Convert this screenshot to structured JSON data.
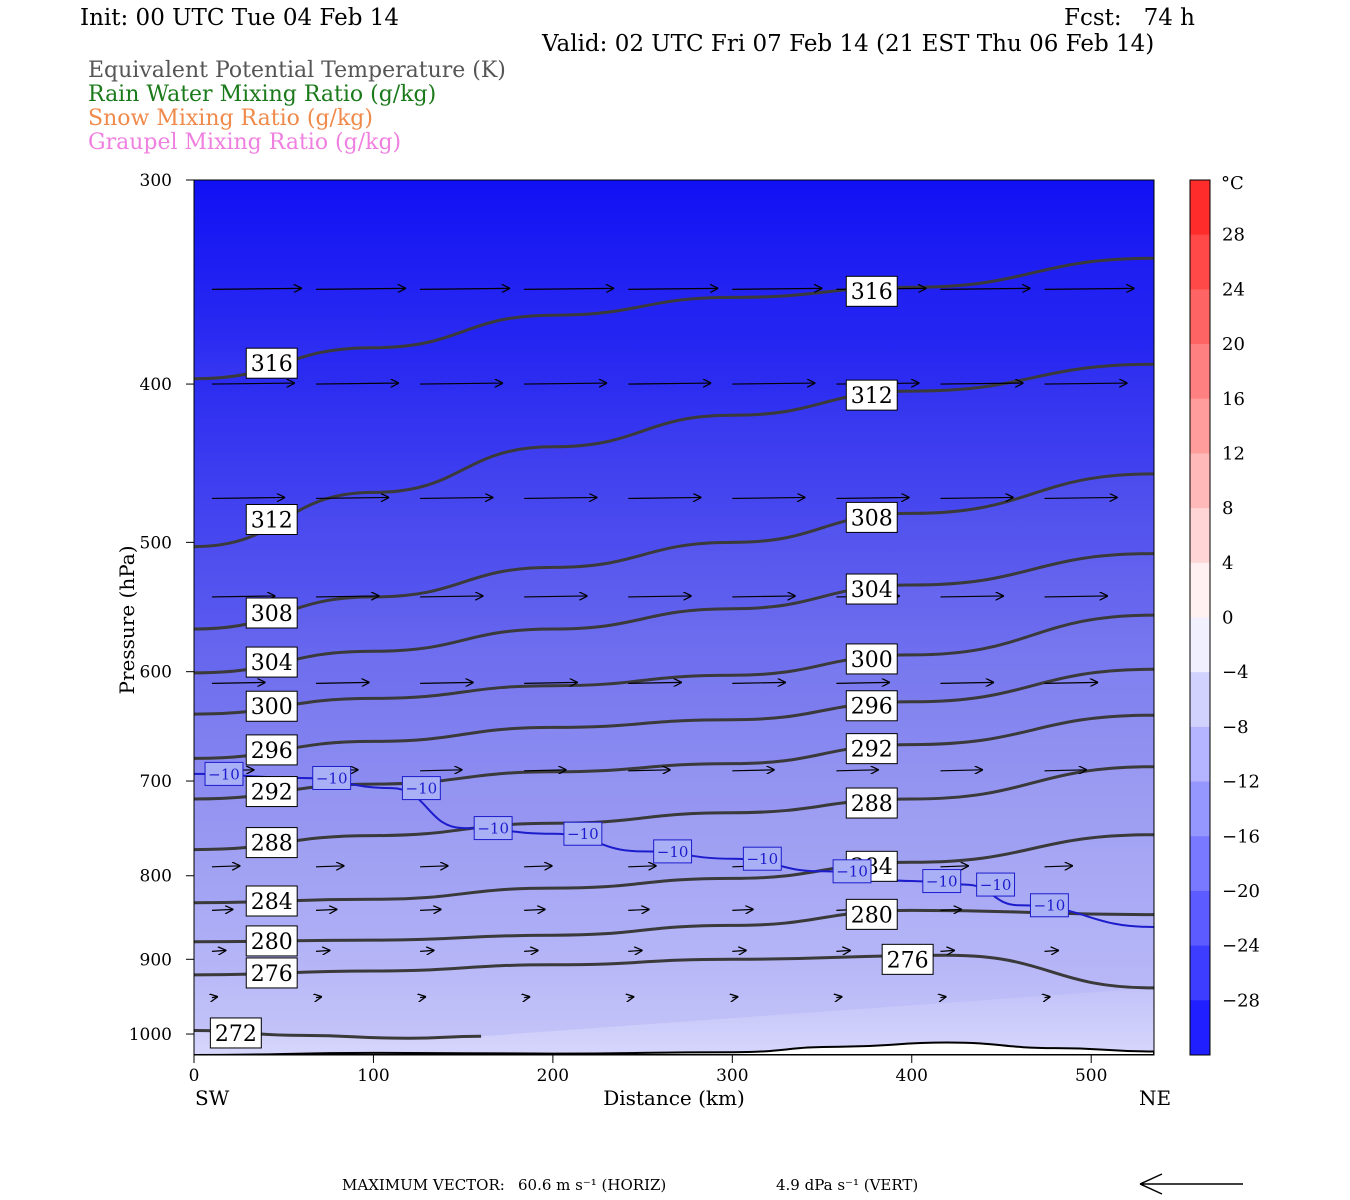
{
  "header": {
    "init": "Init: 00 UTC Tue 04 Feb 14",
    "fcst": "Fcst:   74 h",
    "valid": "Valid: 02 UTC Fri 07 Feb 14 (21 EST Thu 06 Feb 14)"
  },
  "legend": [
    {
      "label": "Equivalent Potential Temperature (K)",
      "color": "#555555"
    },
    {
      "label": "Rain Water Mixing Ratio (g/kg)",
      "color": "#1a7a1a"
    },
    {
      "label": "Snow Mixing Ratio (g/kg)",
      "color": "#f08a4b"
    },
    {
      "label": "Graupel Mixing Ratio (g/kg)",
      "color": "#f080e0"
    }
  ],
  "colorbar": {
    "unit": "°C",
    "ticks": [
      "28",
      "24",
      "20",
      "16",
      "12",
      "8",
      "4",
      "0",
      "−4",
      "−8",
      "−12",
      "−16",
      "−20",
      "−24",
      "−28"
    ]
  },
  "footer": {
    "max_vector_label": "MAXIMUM VECTOR:",
    "horiz": "60.6 m s⁻¹ (HORIZ)",
    "vert": "4.9 dPa s⁻¹ (VERT)"
  },
  "chart_data": {
    "type": "cross-section",
    "xlabel": "Distance (km)",
    "ylabel": "Pressure (hPa)",
    "x_left_label": "SW",
    "x_right_label": "NE",
    "xlim": [
      0,
      535
    ],
    "ylim": [
      300,
      1030
    ],
    "y_scale": "log",
    "xticks": [
      0,
      100,
      200,
      300,
      400,
      500
    ],
    "yticks": [
      300,
      400,
      500,
      600,
      700,
      800,
      900,
      1000
    ],
    "fill_variable": "Temperature (°C)",
    "theta_e_contours": [
      {
        "label": "316",
        "points": [
          [
            0,
            397
          ],
          [
            100,
            380
          ],
          [
            200,
            363
          ],
          [
            300,
            354
          ],
          [
            400,
            349
          ],
          [
            535,
            335
          ]
        ]
      },
      {
        "label": "312",
        "points": [
          [
            0,
            503
          ],
          [
            100,
            466
          ],
          [
            200,
            437
          ],
          [
            300,
            418
          ],
          [
            400,
            404
          ],
          [
            535,
            389
          ]
        ]
      },
      {
        "label": "308",
        "points": [
          [
            0,
            565
          ],
          [
            100,
            540
          ],
          [
            200,
            518
          ],
          [
            300,
            500
          ],
          [
            400,
            480
          ],
          [
            535,
            454
          ]
        ]
      },
      {
        "label": "304",
        "points": [
          [
            0,
            601
          ],
          [
            100,
            583
          ],
          [
            200,
            565
          ],
          [
            300,
            549
          ],
          [
            400,
            531
          ],
          [
            535,
            508
          ]
        ]
      },
      {
        "label": "300",
        "points": [
          [
            0,
            637
          ],
          [
            100,
            623
          ],
          [
            200,
            612
          ],
          [
            300,
            603
          ],
          [
            400,
            586
          ],
          [
            535,
            554
          ]
        ]
      },
      {
        "label": "296",
        "points": [
          [
            0,
            678
          ],
          [
            100,
            662
          ],
          [
            200,
            649
          ],
          [
            300,
            642
          ],
          [
            400,
            626
          ],
          [
            535,
            598
          ]
        ]
      },
      {
        "label": "292",
        "points": [
          [
            0,
            718
          ],
          [
            100,
            703
          ],
          [
            200,
            691
          ],
          [
            300,
            683
          ],
          [
            400,
            665
          ],
          [
            535,
            638
          ]
        ]
      },
      {
        "label": "288",
        "points": [
          [
            0,
            771
          ],
          [
            100,
            756
          ],
          [
            200,
            743
          ],
          [
            300,
            732
          ],
          [
            400,
            718
          ],
          [
            535,
            686
          ]
        ]
      },
      {
        "label": "284",
        "points": [
          [
            0,
            831
          ],
          [
            100,
            827
          ],
          [
            200,
            814
          ],
          [
            300,
            803
          ],
          [
            400,
            785
          ],
          [
            535,
            755
          ]
        ]
      },
      {
        "label": "280",
        "points": [
          [
            0,
            878
          ],
          [
            100,
            876
          ],
          [
            200,
            870
          ],
          [
            300,
            858
          ],
          [
            400,
            840
          ],
          [
            535,
            845
          ]
        ]
      },
      {
        "label": "276",
        "points": [
          [
            0,
            920
          ],
          [
            100,
            915
          ],
          [
            200,
            907
          ],
          [
            300,
            900
          ],
          [
            420,
            895
          ],
          [
            535,
            937
          ]
        ]
      },
      {
        "label": "272",
        "points": [
          [
            0,
            995
          ],
          [
            60,
            1002
          ],
          [
            120,
            1006
          ],
          [
            160,
            1003
          ]
        ]
      }
    ],
    "temp_minus10_contour": {
      "label": "−10",
      "points": [
        [
          0,
          693
        ],
        [
          60,
          697
        ],
        [
          110,
          707
        ],
        [
          150,
          748
        ],
        [
          200,
          754
        ],
        [
          250,
          773
        ],
        [
          300,
          781
        ],
        [
          350,
          795
        ],
        [
          400,
          806
        ],
        [
          430,
          810
        ],
        [
          460,
          834
        ],
        [
          535,
          860
        ]
      ]
    },
    "wind_vectors_description": "westerly flow, stronger aloft",
    "colorbar_range": [
      -32,
      32
    ],
    "colorbar_step": 4
  }
}
